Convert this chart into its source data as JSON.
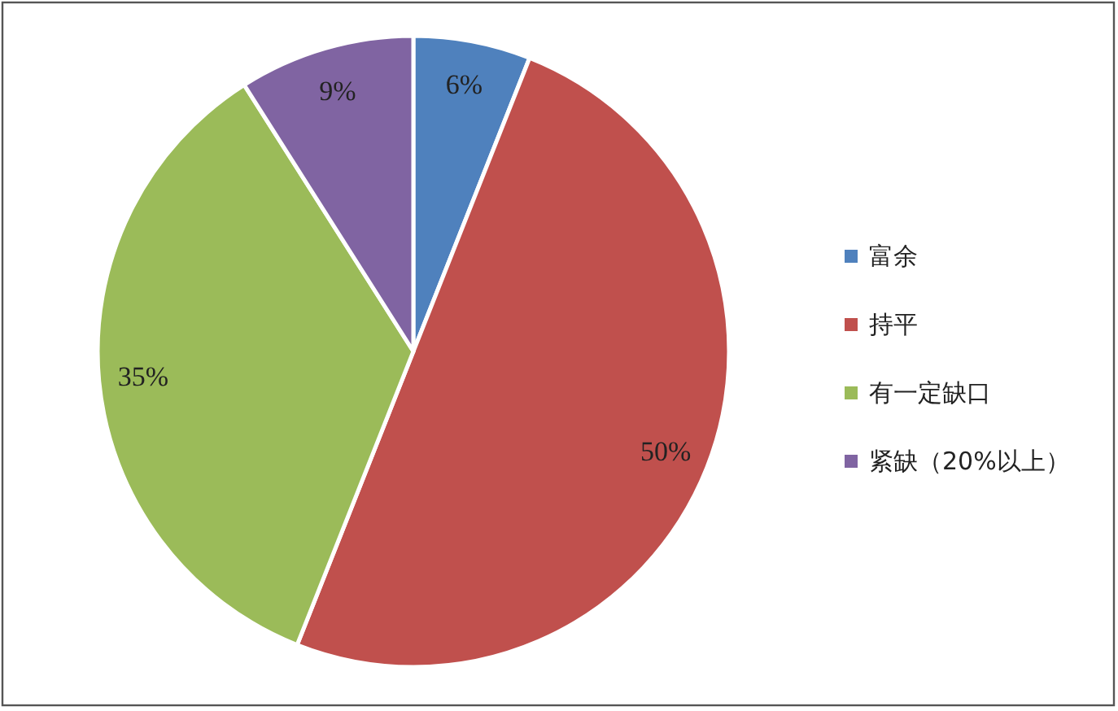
{
  "chart_data": {
    "type": "pie",
    "categories": [
      "富余",
      "持平",
      "有一定缺口",
      "紧缺（20%以上）"
    ],
    "values": [
      6,
      50,
      35,
      9
    ],
    "colors": [
      "#4f81bd",
      "#c0504d",
      "#9bbb59",
      "#8064a2"
    ],
    "value_labels": [
      "6%",
      "50%",
      "35%",
      "9%"
    ],
    "legend": "right"
  }
}
